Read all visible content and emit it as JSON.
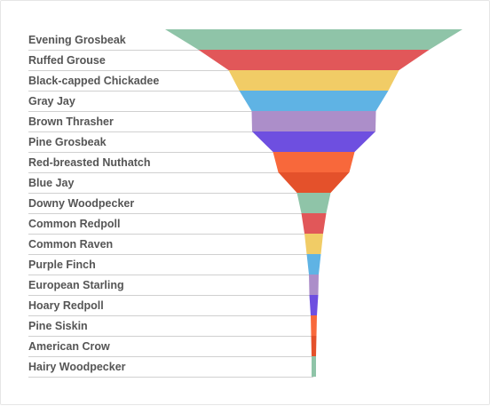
{
  "chart_data": {
    "type": "funnel",
    "title": "",
    "categories": [
      "Evening Grosbeak",
      "Ruffed Grouse",
      "Black-capped Chickadee",
      "Gray Jay",
      "Brown Thrasher",
      "Pine Grosbeak",
      "Red-breasted Nuthatch",
      "Blue Jay",
      "Downy Woodpecker",
      "Common Redpoll",
      "Common Raven",
      "Purple Finch",
      "European Starling",
      "Hoary Redpoll",
      "Pine Siskin",
      "American Crow",
      "Hairy Woodpecker"
    ],
    "values": [
      335,
      260,
      192,
      168,
      140,
      139,
      92,
      80,
      38,
      28,
      21,
      16,
      11,
      10,
      7,
      6,
      5
    ],
    "colors": [
      "#8fc4a8",
      "#e15759",
      "#f1cc66",
      "#5fb3e4",
      "#ac8ec9",
      "#6e4fe0",
      "#f8683b",
      "#e4512b",
      "#8fc4a8",
      "#e15759",
      "#f1cc66",
      "#5fb3e4",
      "#ac8ec9",
      "#6e4fe0",
      "#f8683b",
      "#e4512b",
      "#8fc4a8"
    ],
    "legend": "none",
    "grid": false
  }
}
